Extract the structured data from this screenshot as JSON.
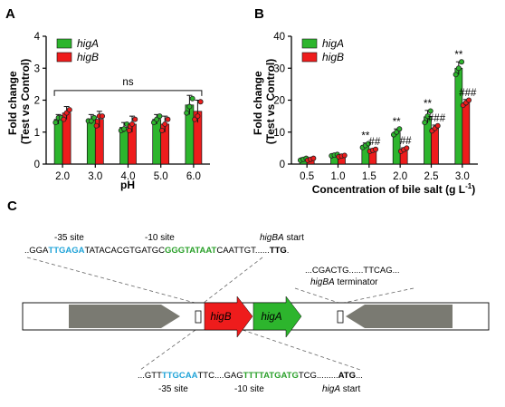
{
  "colors": {
    "higA": "#2db52d",
    "higB": "#ee1c1c",
    "grey_arrow": "#7a7a72",
    "seq_blue": "#1fa3d8",
    "seq_green": "#2aa02a"
  },
  "panels": {
    "a": "A",
    "b": "B",
    "c": "C"
  },
  "chart_data": [
    {
      "panel": "A",
      "type": "bar",
      "xlabel": "pH",
      "ylabel": "Fold change\n(Test vs Control)",
      "ylim": [
        0,
        4
      ],
      "yticks": [
        "0",
        "1",
        "2",
        "3",
        "4"
      ],
      "categories": [
        "2.0",
        "3.0",
        "4.0",
        "5.0",
        "6.0"
      ],
      "legend": {
        "placement": "top-left"
      },
      "series": [
        {
          "name": "higA",
          "color": "#2db52d",
          "values": [
            1.4,
            1.4,
            1.15,
            1.4,
            1.85
          ],
          "errors": [
            0.15,
            0.15,
            0.15,
            0.15,
            0.3
          ],
          "points": [
            [
              1.3,
              1.45,
              1.45
            ],
            [
              1.35,
              1.35,
              1.45
            ],
            [
              1.05,
              1.1,
              1.25
            ],
            [
              1.3,
              1.4,
              1.5
            ],
            [
              1.6,
              1.8,
              2.05
            ]
          ]
        },
        {
          "name": "higB",
          "color": "#ee1c1c",
          "values": [
            1.6,
            1.4,
            1.25,
            1.25,
            1.65
          ],
          "errors": [
            0.2,
            0.25,
            0.25,
            0.25,
            0.35
          ],
          "points": [
            [
              1.4,
              1.6,
              1.7
            ],
            [
              1.2,
              1.5,
              1.5
            ],
            [
              1.05,
              1.25,
              1.4
            ],
            [
              1.05,
              1.25,
              1.4
            ],
            [
              1.4,
              1.5,
              1.95
            ]
          ]
        }
      ],
      "annotations": [
        {
          "text": "ns",
          "type": "bracket",
          "from": 0,
          "to": 4,
          "y": 2.3
        }
      ]
    },
    {
      "panel": "B",
      "type": "bar",
      "xlabel": "Concentration of bile salt (g L",
      "xlabel_sup": "-1",
      "xlabel_end": ")",
      "ylabel": "Fold change\n(Test vs Control)",
      "ylim": [
        0,
        40
      ],
      "yticks": [
        "0",
        "10",
        "20",
        "30",
        "40"
      ],
      "categories": [
        "0.5",
        "1.0",
        "1.5",
        "2.0",
        "2.5",
        "3.0"
      ],
      "legend": {
        "placement": "top-left"
      },
      "series": [
        {
          "name": "higA",
          "color": "#2db52d",
          "values": [
            1.5,
            2.8,
            5.8,
            10.0,
            14.8,
            30.0
          ],
          "errors": [
            0.5,
            0.5,
            0.8,
            1.0,
            2.0,
            2.0
          ],
          "points": [
            [
              1.2,
              1.5,
              1.8
            ],
            [
              2.6,
              2.8,
              3.0
            ],
            [
              5.2,
              5.8,
              6.4
            ],
            [
              9.2,
              10.0,
              11.0
            ],
            [
              13.0,
              15.0,
              16.6
            ],
            [
              28.0,
              30.0,
              32.0
            ]
          ],
          "marks": [
            "",
            "",
            "**",
            "**",
            "**",
            "**"
          ]
        },
        {
          "name": "higB",
          "color": "#ee1c1c",
          "values": [
            1.5,
            2.5,
            4.3,
            4.5,
            11.2,
            19.2
          ],
          "errors": [
            0.4,
            0.4,
            0.5,
            0.6,
            1.0,
            1.0
          ],
          "points": [
            [
              1.2,
              1.5,
              1.8
            ],
            [
              2.3,
              2.5,
              2.7
            ],
            [
              4.0,
              4.3,
              4.6
            ],
            [
              4.0,
              4.5,
              5.0
            ],
            [
              10.4,
              11.2,
              12.0
            ],
            [
              18.4,
              19.2,
              20.0
            ]
          ],
          "marks": [
            "",
            "",
            "##",
            "##",
            "###",
            "###"
          ]
        }
      ]
    }
  ],
  "schematic": {
    "top_labels": {
      "minus35": "-35 site",
      "minus10": "-10 site",
      "start": "higBA start"
    },
    "top_seq": [
      {
        "t": "..GGA",
        "c": "black"
      },
      {
        "t": "TTGAGA",
        "c": "blue"
      },
      {
        "t": "TATACACGTGATGC",
        "c": "black"
      },
      {
        "t": "GGGTATAAT",
        "c": "green"
      },
      {
        "t": "CAATTGT......",
        "c": "black"
      },
      {
        "t": "TTG",
        "c": "bold"
      },
      {
        "t": ".",
        "c": "black"
      }
    ],
    "terminator_seq": "...CGACTG......TTCAG...",
    "terminator_label": "higBA terminator",
    "gene_higB": "higB",
    "gene_higA": "higA",
    "bottom_seq": [
      {
        "t": "...GTT",
        "c": "black"
      },
      {
        "t": "TTGCAA",
        "c": "blue"
      },
      {
        "t": "TTC....GAG",
        "c": "black"
      },
      {
        "t": "TTTTATGATG",
        "c": "green"
      },
      {
        "t": "TCG.........",
        "c": "black"
      },
      {
        "t": "ATG",
        "c": "bold"
      },
      {
        "t": "...",
        "c": "black"
      }
    ],
    "bottom_labels": {
      "minus35": "-35 site",
      "minus10": "-10 site",
      "start": "higA start"
    }
  }
}
